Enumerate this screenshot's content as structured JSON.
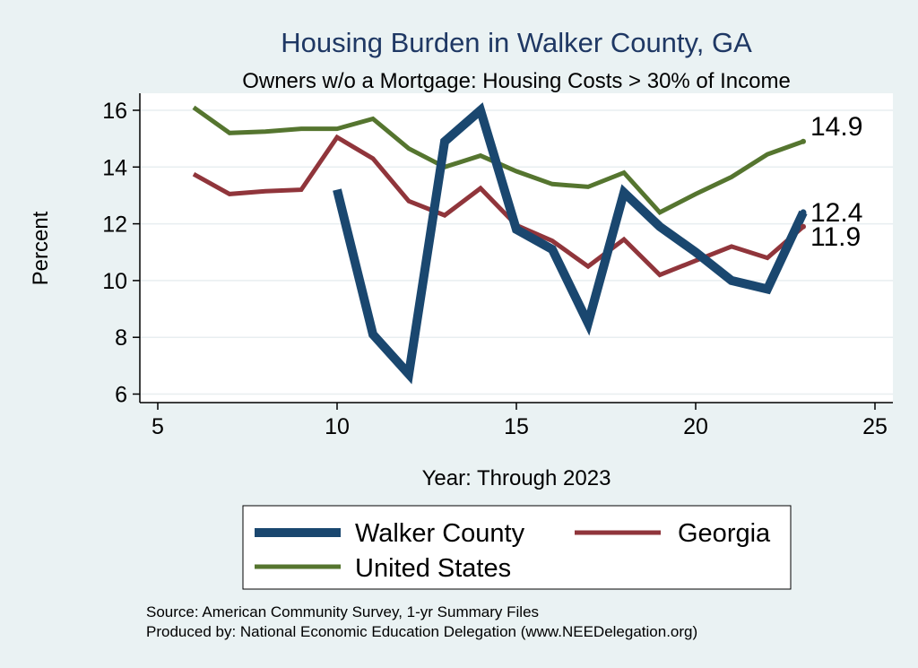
{
  "chart_data": {
    "type": "line",
    "title": "Housing Burden in Walker County, GA",
    "subtitle": "Owners w/o a Mortgage: Housing Costs > 30% of Income",
    "xlabel": "Year: Through 2023",
    "ylabel": "Percent",
    "xlim": [
      5,
      25
    ],
    "ylim": [
      5.7,
      16.6
    ],
    "xticks": [
      5,
      10,
      15,
      20,
      25
    ],
    "yticks": [
      6,
      8,
      10,
      12,
      14,
      16
    ],
    "grid": true,
    "legend_position": "bottom",
    "series": [
      {
        "name": "Walker County",
        "color": "#1a476f",
        "x": [
          10,
          11,
          12,
          13,
          14,
          15,
          16,
          17,
          18,
          19,
          20,
          21,
          22,
          23
        ],
        "values": [
          13.2,
          8.1,
          6.7,
          14.9,
          16.0,
          11.8,
          11.1,
          8.5,
          13.1,
          11.9,
          11.0,
          10.0,
          9.7,
          12.4
        ],
        "end_label": "12.4"
      },
      {
        "name": "Georgia",
        "color": "#90353b",
        "x": [
          6,
          7,
          8,
          9,
          10,
          11,
          12,
          13,
          14,
          15,
          16,
          17,
          18,
          19,
          20,
          21,
          22,
          23
        ],
        "values": [
          13.75,
          13.05,
          13.15,
          13.2,
          15.05,
          14.3,
          12.8,
          12.3,
          13.25,
          11.95,
          11.4,
          10.5,
          11.45,
          10.2,
          10.7,
          11.2,
          10.8,
          11.9
        ],
        "end_label": "11.9"
      },
      {
        "name": "United States",
        "color": "#55752f",
        "x": [
          6,
          7,
          8,
          9,
          10,
          11,
          12,
          13,
          14,
          15,
          16,
          17,
          18,
          19,
          20,
          21,
          22,
          23
        ],
        "values": [
          16.1,
          15.2,
          15.25,
          15.35,
          15.35,
          15.7,
          14.65,
          14.0,
          14.4,
          13.85,
          13.4,
          13.3,
          13.8,
          12.4,
          13.05,
          13.65,
          14.45,
          14.9
        ],
        "end_label": "14.9"
      }
    ],
    "notes": [
      "Source: American Community Survey, 1-yr Summary Files",
      "Produced by: National Economic Education Delegation (www.NEEDelegation.org)"
    ]
  }
}
